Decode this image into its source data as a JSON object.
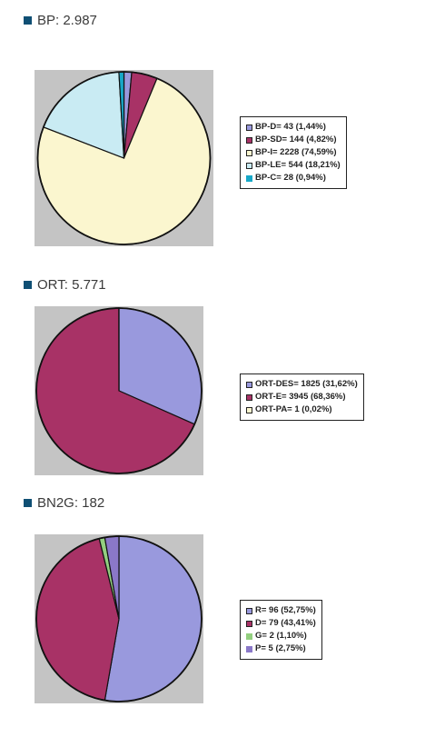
{
  "chart_data": [
    {
      "type": "pie",
      "title": "BP: 2.987",
      "categories": [
        "BP-D= 43 (1,44%)",
        "BP-SD= 144 (4,82%)",
        "BP-I= 2228 (74,59%)",
        "BP-LE= 544 (18,21%)",
        "BP-C= 28 (0,94%)"
      ],
      "values": [
        43,
        144,
        2228,
        544,
        28
      ],
      "colors": [
        "#9999dd",
        "#a83266",
        "#fbf6cf",
        "#c9ebf3",
        "#17a8c8"
      ],
      "legend_border_colors": [
        "#222222",
        "#222222",
        "#222222",
        "#222222",
        "#17a8c8"
      ],
      "start_angle_deg": 0,
      "legend": "right"
    },
    {
      "type": "pie",
      "title": "ORT: 5.771",
      "categories": [
        "ORT-DES= 1825 (31,62%)",
        "ORT-E= 3945 (68,36%)",
        "ORT-PA= 1 (0,02%)"
      ],
      "values": [
        1825,
        3945,
        1
      ],
      "colors": [
        "#9999dd",
        "#a83266",
        "#fbf6cf"
      ],
      "legend_border_colors": [
        "#222222",
        "#222222",
        "#222222"
      ],
      "start_angle_deg": 0,
      "legend": "right"
    },
    {
      "type": "pie",
      "title": "BN2G: 182",
      "categories": [
        "R= 96 (52,75%)",
        "D= 79 (43,41%)",
        "G= 2 (1,10%)",
        "P= 5 (2,75%)"
      ],
      "values": [
        96,
        79,
        2,
        5
      ],
      "colors": [
        "#9999dd",
        "#a83266",
        "#93cf7f",
        "#8a78c8"
      ],
      "legend_border_colors": [
        "#222222",
        "#222222",
        "#93cf7f",
        "#8a78c8"
      ],
      "start_angle_deg": 0,
      "legend": "right"
    }
  ],
  "theme": {
    "accent": "#0f4f74",
    "plot_background": "#c4c4c4"
  }
}
